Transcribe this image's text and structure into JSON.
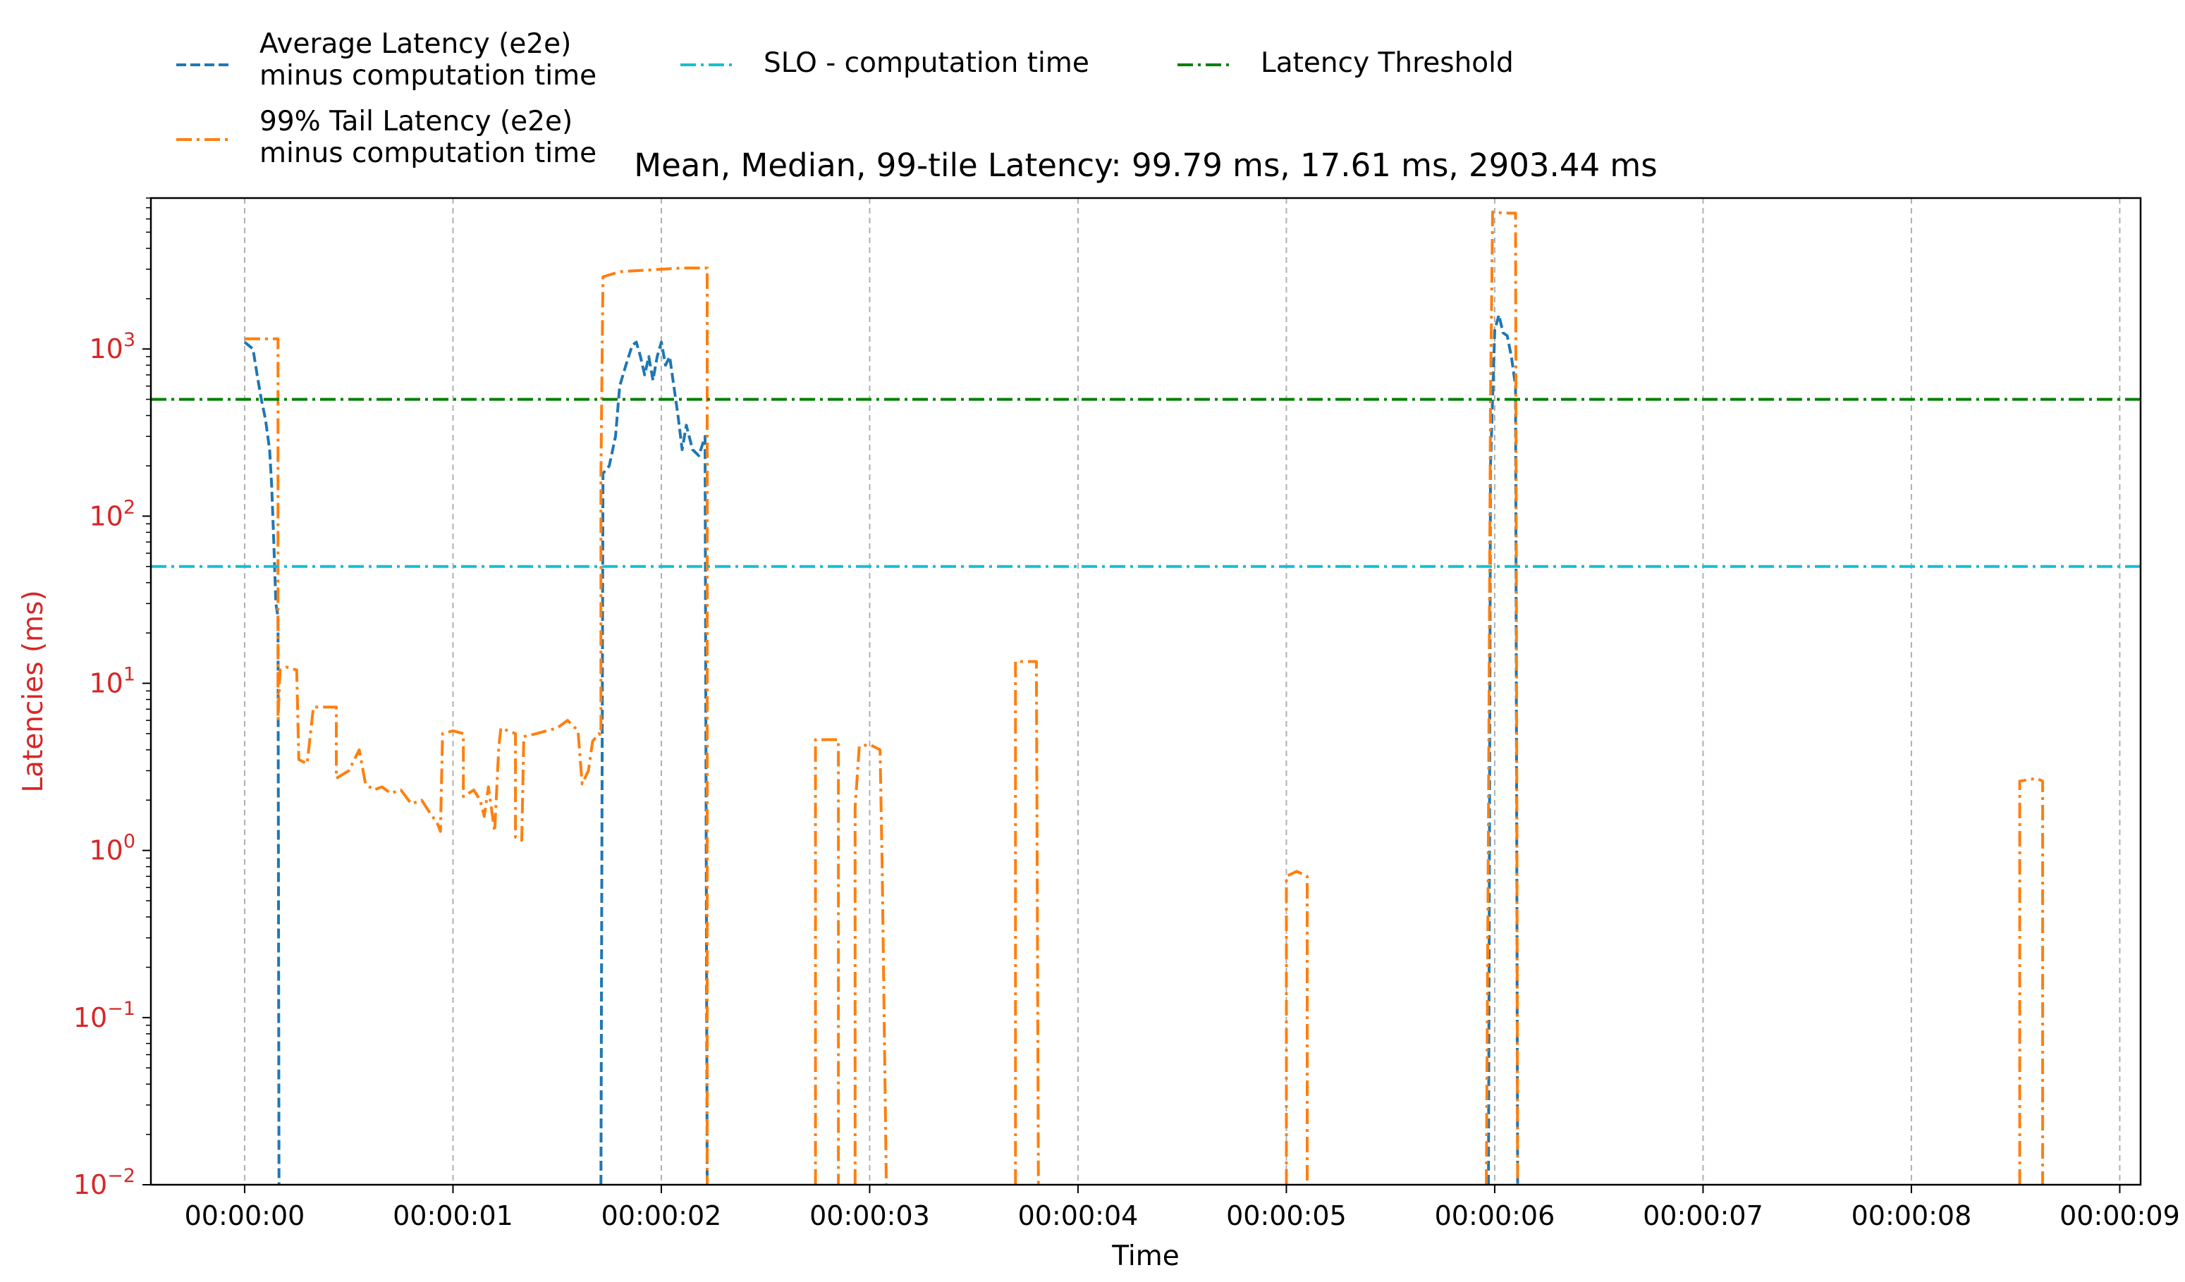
{
  "chart_data": {
    "type": "line",
    "title": "Mean, Median, 99-tile Latency: 99.79 ms, 17.61 ms, 2903.44 ms",
    "xlabel": "Time",
    "ylabel": "Latencies (ms)",
    "yscale": "log",
    "ylim": [
      0.01,
      8000
    ],
    "xlim": [
      -0.45,
      9.1
    ],
    "grid": "vertical dashed gridlines at x ticks",
    "legend_position": "top-left, above plot",
    "x_ticks": [
      {
        "value": 0,
        "label": "00:00:00"
      },
      {
        "value": 1,
        "label": "00:00:01"
      },
      {
        "value": 2,
        "label": "00:00:02"
      },
      {
        "value": 3,
        "label": "00:00:03"
      },
      {
        "value": 4,
        "label": "00:00:04"
      },
      {
        "value": 5,
        "label": "00:00:05"
      },
      {
        "value": 6,
        "label": "00:00:06"
      },
      {
        "value": 7,
        "label": "00:00:07"
      },
      {
        "value": 8,
        "label": "00:00:08"
      },
      {
        "value": 9,
        "label": "00:00:09"
      }
    ],
    "y_ticks": [
      {
        "value": 0.01,
        "base": "10",
        "exp": "−2"
      },
      {
        "value": 0.1,
        "base": "10",
        "exp": "−1"
      },
      {
        "value": 1,
        "base": "10",
        "exp": "0"
      },
      {
        "value": 10,
        "base": "10",
        "exp": "1"
      },
      {
        "value": 100,
        "base": "10",
        "exp": "2"
      },
      {
        "value": 1000,
        "base": "10",
        "exp": "3"
      }
    ],
    "colors": {
      "avg": "#1f77b4",
      "tail": "#ff7f0e",
      "slo": "#17becf",
      "threshold": "#008000",
      "ylabel": "#d62728",
      "grid": "#b0b0b0"
    },
    "series": [
      {
        "name": "Average Latency (e2e)\nminus computation time",
        "legend_lines": [
          "Average Latency (e2e)",
          "minus computation time"
        ],
        "color": "#1f77b4",
        "style": "dashed",
        "segments": [
          [
            [
              0.0,
              1100
            ],
            [
              0.04,
              1000
            ],
            [
              0.06,
              700
            ],
            [
              0.08,
              500
            ],
            [
              0.1,
              380
            ],
            [
              0.12,
              250
            ],
            [
              0.13,
              150
            ],
            [
              0.14,
              70
            ],
            [
              0.15,
              30
            ],
            [
              0.16,
              25
            ],
            [
              0.165,
              0.01
            ]
          ],
          [
            [
              1.71,
              0.01
            ],
            [
              1.72,
              180
            ],
            [
              1.75,
              200
            ],
            [
              1.78,
              300
            ],
            [
              1.8,
              600
            ],
            [
              1.83,
              800
            ],
            [
              1.86,
              1050
            ],
            [
              1.88,
              1100
            ],
            [
              1.9,
              900
            ],
            [
              1.92,
              700
            ],
            [
              1.94,
              900
            ],
            [
              1.96,
              650
            ],
            [
              1.98,
              900
            ],
            [
              2.0,
              1100
            ],
            [
              2.02,
              800
            ],
            [
              2.04,
              900
            ],
            [
              2.06,
              600
            ],
            [
              2.08,
              400
            ],
            [
              2.1,
              250
            ],
            [
              2.12,
              350
            ],
            [
              2.15,
              250
            ],
            [
              2.18,
              230
            ],
            [
              2.21,
              300
            ],
            [
              2.22,
              0.01
            ]
          ],
          [
            [
              5.97,
              0.01
            ],
            [
              5.98,
              200
            ],
            [
              6.0,
              1300
            ],
            [
              6.02,
              1600
            ],
            [
              6.04,
              1250
            ],
            [
              6.06,
              1200
            ],
            [
              6.08,
              900
            ],
            [
              6.1,
              600
            ],
            [
              6.11,
              0.01
            ]
          ]
        ]
      },
      {
        "name": "99% Tail Latency (e2e)\nminus computation time",
        "legend_lines": [
          "99% Tail Latency (e2e)",
          "minus computation time"
        ],
        "color": "#ff7f0e",
        "style": "dashdot",
        "segments": [
          [
            [
              0.0,
              1150
            ],
            [
              0.08,
              1150
            ],
            [
              0.16,
              1150
            ],
            [
              0.16,
              6
            ],
            [
              0.17,
              12
            ],
            [
              0.2,
              12.5
            ],
            [
              0.25,
              12
            ],
            [
              0.26,
              3.5
            ],
            [
              0.3,
              3.3
            ],
            [
              0.33,
              7.2
            ],
            [
              0.4,
              7.2
            ],
            [
              0.44,
              7.2
            ],
            [
              0.44,
              2.7
            ],
            [
              0.5,
              3
            ],
            [
              0.55,
              4
            ],
            [
              0.58,
              2.5
            ],
            [
              0.62,
              2.3
            ],
            [
              0.66,
              2.4
            ],
            [
              0.7,
              2.2
            ],
            [
              0.75,
              2.3
            ],
            [
              0.8,
              1.9
            ],
            [
              0.85,
              2.0
            ],
            [
              0.9,
              1.6
            ],
            [
              0.92,
              1.5
            ],
            [
              0.93,
              1.4
            ],
            [
              0.94,
              1.3
            ],
            [
              0.95,
              5
            ],
            [
              1.0,
              5.2
            ],
            [
              1.05,
              5
            ],
            [
              1.05,
              2.1
            ],
            [
              1.1,
              2.3
            ],
            [
              1.13,
              2.0
            ],
            [
              1.15,
              1.6
            ],
            [
              1.17,
              2.4
            ],
            [
              1.2,
              1.3
            ],
            [
              1.22,
              4.2
            ],
            [
              1.23,
              5.4
            ],
            [
              1.3,
              5
            ],
            [
              1.3,
              1.2
            ],
            [
              1.33,
              1.15
            ],
            [
              1.34,
              4.8
            ],
            [
              1.4,
              5
            ],
            [
              1.45,
              5.2
            ],
            [
              1.5,
              5.4
            ],
            [
              1.55,
              6
            ],
            [
              1.6,
              5.2
            ],
            [
              1.62,
              2.5
            ],
            [
              1.65,
              3.0
            ],
            [
              1.67,
              4.5
            ],
            [
              1.7,
              5
            ],
            [
              1.71,
              4.9
            ],
            [
              1.71,
              180
            ],
            [
              1.72,
              2700
            ],
            [
              1.8,
              2900
            ],
            [
              2.0,
              3000
            ],
            [
              2.1,
              3050
            ],
            [
              2.22,
              3050
            ],
            [
              2.22,
              0.01
            ]
          ],
          [
            [
              2.74,
              0.01
            ],
            [
              2.74,
              4.6
            ],
            [
              2.8,
              4.6
            ],
            [
              2.85,
              4.6
            ],
            [
              2.85,
              0.01
            ]
          ],
          [
            [
              2.93,
              0.01
            ],
            [
              2.93,
              1.8
            ],
            [
              2.95,
              4.2
            ],
            [
              3.0,
              4.3
            ],
            [
              3.05,
              4.0
            ],
            [
              3.06,
              0.8
            ],
            [
              3.08,
              0.01
            ]
          ],
          [
            [
              3.7,
              0.01
            ],
            [
              3.7,
              13.5
            ],
            [
              3.8,
              13.5
            ],
            [
              3.81,
              0.01
            ]
          ],
          [
            [
              5.0,
              0.01
            ],
            [
              5.0,
              0.7
            ],
            [
              5.05,
              0.75
            ],
            [
              5.1,
              0.7
            ],
            [
              5.1,
              0.01
            ]
          ],
          [
            [
              5.96,
              0.01
            ],
            [
              5.97,
              1.5
            ],
            [
              5.98,
              500
            ],
            [
              5.99,
              6600
            ],
            [
              6.05,
              6500
            ],
            [
              6.1,
              6500
            ],
            [
              6.11,
              0.01
            ]
          ],
          [
            [
              8.52,
              0.01
            ],
            [
              8.52,
              2.6
            ],
            [
              8.6,
              2.7
            ],
            [
              8.63,
              2.6
            ],
            [
              8.63,
              0.01
            ]
          ]
        ]
      },
      {
        "name": "SLO - computation time",
        "legend_lines": [
          "SLO - computation time"
        ],
        "color": "#17becf",
        "style": "dashdot",
        "y_const": 50
      },
      {
        "name": "Latency Threshold",
        "legend_lines": [
          "Latency Threshold"
        ],
        "color": "#008000",
        "style": "dashdot",
        "y_const": 500
      }
    ]
  }
}
